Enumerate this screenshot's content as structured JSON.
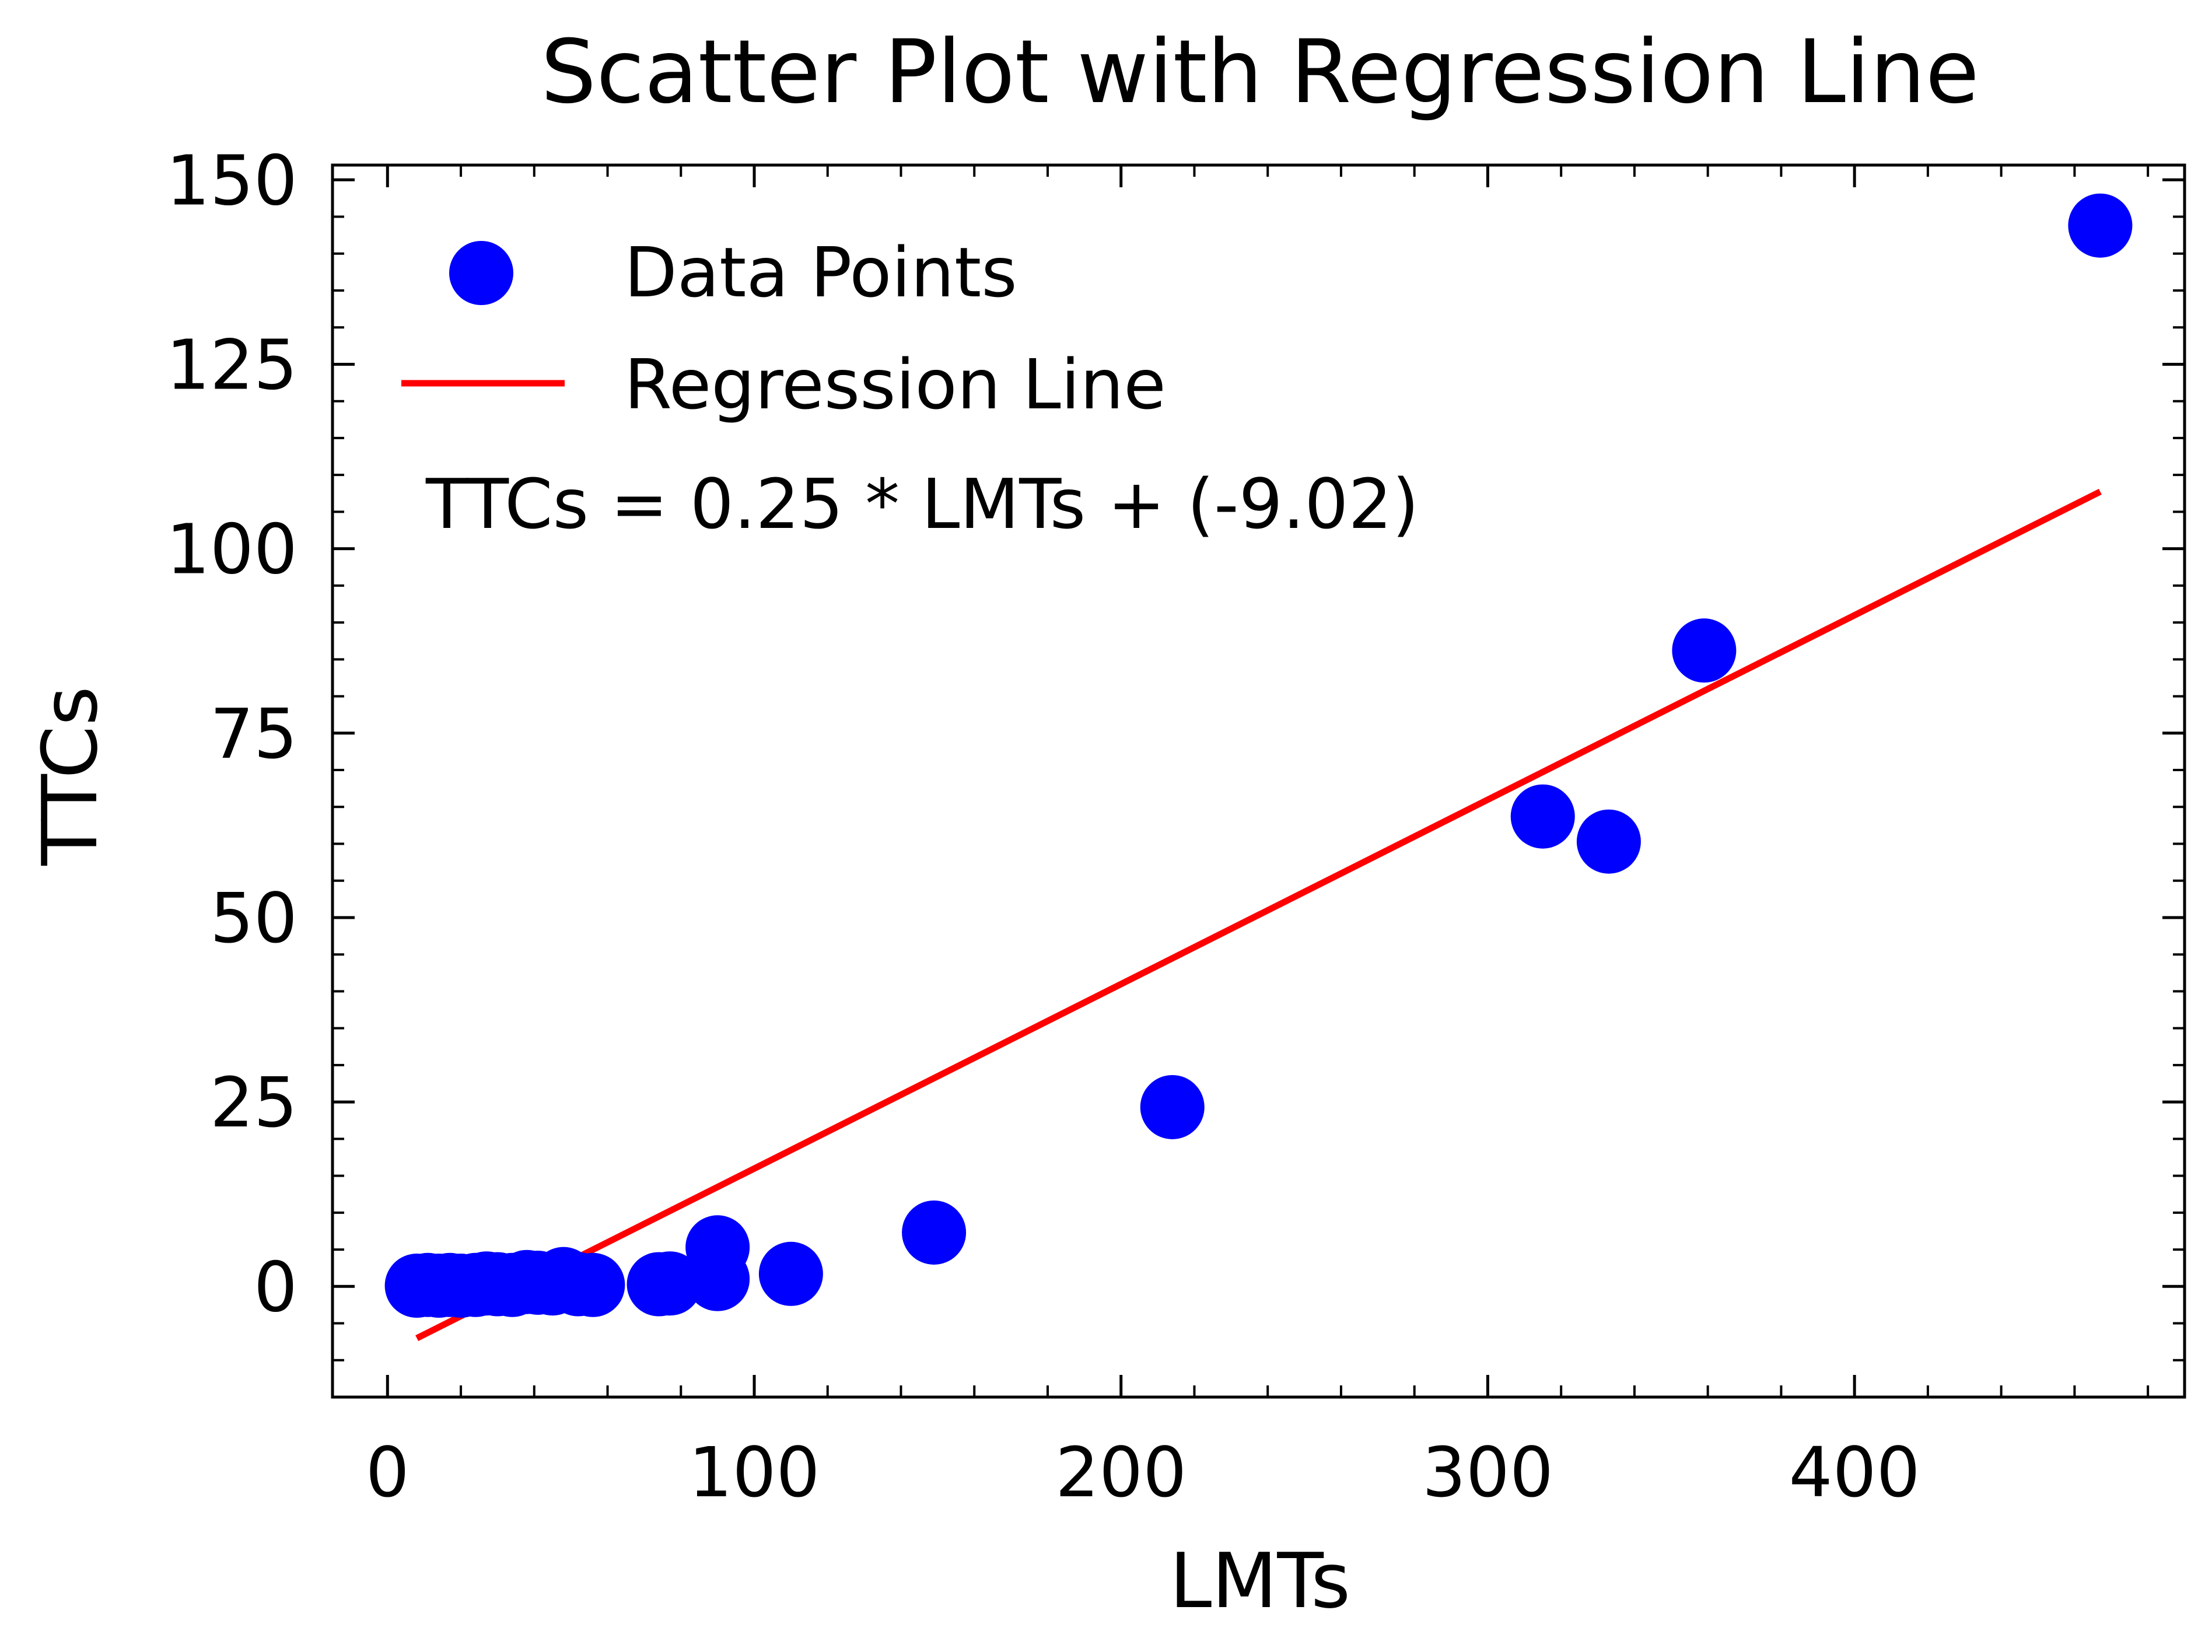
{
  "chart_data": {
    "type": "scatter",
    "title": "Scatter Plot with Regression Line",
    "xlabel": "LMTs",
    "ylabel": "TTCs",
    "xlim": [
      -15,
      490
    ],
    "ylim": [
      -15,
      152
    ],
    "xticks": [
      0,
      100,
      200,
      300,
      400
    ],
    "yticks": [
      0,
      25,
      50,
      75,
      100,
      125,
      150
    ],
    "xtick_labels": [
      "0",
      "100",
      "200",
      "300",
      "400"
    ],
    "ytick_labels": [
      "0",
      "25",
      "50",
      "75",
      "100",
      "125",
      "150"
    ],
    "grid": false,
    "legend_position": "top-left",
    "series": [
      {
        "name": "Data Points",
        "kind": "scatter",
        "color": "#0000ff",
        "points": [
          [
            8,
            0.1
          ],
          [
            11,
            0.2
          ],
          [
            14,
            0.1
          ],
          [
            17,
            0.2
          ],
          [
            20,
            0.1
          ],
          [
            24,
            0.2
          ],
          [
            27,
            0.4
          ],
          [
            30,
            0.3
          ],
          [
            34,
            0.2
          ],
          [
            38,
            0.6
          ],
          [
            41,
            0.5
          ],
          [
            45,
            0.4
          ],
          [
            48,
            1.0
          ],
          [
            52,
            0.3
          ],
          [
            56,
            0.2
          ],
          [
            74,
            0.3
          ],
          [
            77,
            0.4
          ],
          [
            90,
            5.3
          ],
          [
            90,
            1.0
          ],
          [
            110,
            1.7
          ],
          [
            149,
            7.3
          ],
          [
            214,
            24.3
          ],
          [
            315,
            63.7
          ],
          [
            333,
            60.3
          ],
          [
            359,
            86.2
          ],
          [
            467,
            143.8
          ]
        ]
      },
      {
        "name": "Regression Line",
        "kind": "line",
        "color": "#ff0000",
        "slope": 0.25,
        "intercept": -9.02,
        "x_range": [
          8,
          467
        ]
      }
    ],
    "annotations": [
      "TTCs = 0.25 * LMTs + (-9.02)"
    ]
  }
}
